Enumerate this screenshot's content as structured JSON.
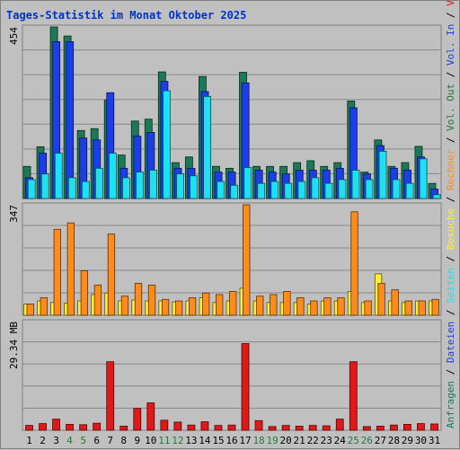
{
  "chart_data": {
    "type": "bar",
    "title": "Tages-Statistik im Monat Oktober 2025",
    "categories": [
      "1",
      "2",
      "3",
      "4",
      "5",
      "6",
      "7",
      "8",
      "9",
      "10",
      "11",
      "12",
      "13",
      "14",
      "15",
      "16",
      "17",
      "18",
      "19",
      "20",
      "21",
      "22",
      "23",
      "24",
      "25",
      "26",
      "27",
      "28",
      "29",
      "30",
      "31"
    ],
    "weekend_days": [
      "4",
      "5",
      "11",
      "12",
      "18",
      "19",
      "25",
      "26"
    ],
    "colors": {
      "background": "#c0c0c0",
      "anfragen": "#1b7a55",
      "dateien": "#1b3ee8",
      "seiten": "#1ee0f0",
      "besuche": "#ffee33",
      "rechner": "#ff8c1a",
      "volumen": "#e01818",
      "title": "#0033cc",
      "weekday_tick": "#000000",
      "weekend_tick": "#1f7a3a"
    },
    "panels": [
      {
        "id": "top",
        "ymax": 454,
        "ytick_label": "454",
        "series": [
          {
            "name": "Anfragen",
            "values": [
              85,
              137,
              454,
              430,
              180,
              185,
              260,
              115,
              205,
              210,
              335,
              95,
              110,
              323,
              85,
              80,
              334,
              85,
              85,
              85,
              95,
              100,
              85,
              95,
              258,
              70,
              155,
              85,
              95,
              138,
              40
            ]
          },
          {
            "name": "Dateien",
            "values": [
              55,
              120,
              415,
              415,
              160,
              155,
              280,
              80,
              165,
              175,
              310,
              80,
              80,
              283,
              70,
              70,
              306,
              75,
              70,
              65,
              75,
              75,
              75,
              80,
              240,
              65,
              140,
              80,
              75,
              110,
              25
            ]
          },
          {
            "name": "Seiten",
            "values": [
              50,
              65,
              120,
              55,
              45,
              80,
              120,
              55,
              70,
              75,
              285,
              65,
              60,
              270,
              45,
              35,
              82,
              40,
              45,
              40,
              45,
              55,
              40,
              50,
              75,
              50,
              125,
              50,
              40,
              105,
              10
            ]
          }
        ]
      },
      {
        "id": "middle",
        "ymax": 347,
        "ytick_label": "347",
        "series": [
          {
            "name": "Besuche",
            "values": [
              35,
              45,
              40,
              38,
              45,
              65,
              70,
              45,
              48,
              45,
              45,
              42,
              45,
              55,
              40,
              45,
              85,
              45,
              40,
              40,
              40,
              35,
              45,
              45,
              75,
              40,
              130,
              45,
              40,
              45,
              45
            ]
          },
          {
            "name": "Rechner",
            "values": [
              35,
              55,
              270,
              290,
              140,
              95,
              255,
              60,
              100,
              95,
              50,
              45,
              55,
              70,
              65,
              75,
              347,
              60,
              65,
              75,
              55,
              45,
              55,
              55,
              325,
              45,
              100,
              80,
              45,
              45,
              50
            ]
          }
        ]
      },
      {
        "id": "bottom",
        "ymax": 29.34,
        "ytick_label": "29.34 MB",
        "series": [
          {
            "name": "Volumen",
            "values": [
              1.3,
              1.8,
              3.0,
              1.6,
              1.5,
              1.9,
              18.5,
              1.1,
              5.9,
              7.4,
              2.7,
              2.2,
              1.4,
              2.3,
              1.3,
              1.4,
              23.4,
              2.6,
              1.0,
              1.3,
              1.1,
              1.3,
              1.2,
              3.0,
              18.5,
              1.0,
              1.1,
              1.4,
              1.6,
              1.8,
              1.7
            ]
          }
        ]
      }
    ],
    "legend": [
      {
        "text": "Anfragen",
        "color": "#1b7a55"
      },
      {
        "text": " / ",
        "color": "#000000"
      },
      {
        "text": "Dateien",
        "color": "#1b3ee8"
      },
      {
        "text": " / ",
        "color": "#000000"
      },
      {
        "text": "Seiten",
        "color": "#1ee0f0"
      },
      {
        "text": " / ",
        "color": "#000000"
      },
      {
        "text": "Besuche",
        "color": "#ffee33"
      },
      {
        "text": " / ",
        "color": "#000000"
      },
      {
        "text": "Rechner",
        "color": "#ff8c1a"
      },
      {
        "text": " / ",
        "color": "#000000"
      },
      {
        "text": "Vol. Out",
        "color": "#1f7a3a"
      },
      {
        "text": " / ",
        "color": "#000000"
      },
      {
        "text": "Vol. In",
        "color": "#1b3ee8"
      },
      {
        "text": " / ",
        "color": "#000000"
      },
      {
        "text": "Volumen",
        "color": "#e01818"
      }
    ],
    "grid": true,
    "legend_placement": "right-vertical"
  }
}
